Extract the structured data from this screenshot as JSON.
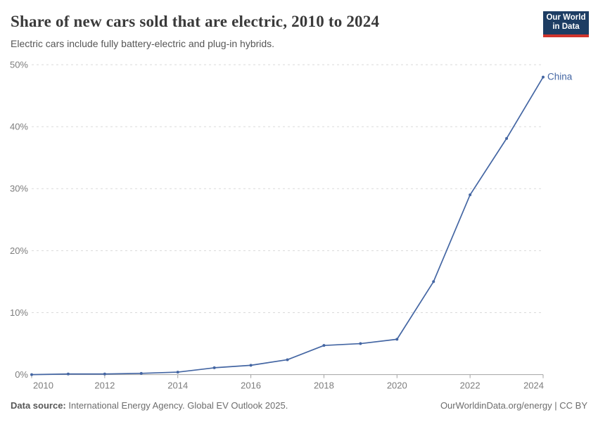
{
  "header": {
    "title": "Share of new cars sold that are electric, 2010 to 2024",
    "subtitle": "Electric cars include fully battery-electric and plug-in hybrids."
  },
  "logo": {
    "line1": "Our World",
    "line2": "in Data",
    "bg_color": "#1d3d63",
    "accent_color": "#d0342c"
  },
  "chart_data": {
    "type": "line",
    "title": "Share of new cars sold that are electric, 2010 to 2024",
    "subtitle": "Electric cars include fully battery-electric and plug-in hybrids.",
    "x": [
      2010,
      2011,
      2012,
      2013,
      2014,
      2015,
      2016,
      2017,
      2018,
      2019,
      2020,
      2021,
      2022,
      2023,
      2024
    ],
    "series": [
      {
        "name": "China",
        "color": "#4466a3",
        "values": [
          0.0,
          0.1,
          0.1,
          0.2,
          0.4,
          1.1,
          1.5,
          2.4,
          4.7,
          5.0,
          5.7,
          15.0,
          29.0,
          38.1,
          48.0
        ]
      }
    ],
    "xlabel": "",
    "ylabel": "",
    "xlim": [
      2010,
      2024
    ],
    "ylim": [
      0,
      50
    ],
    "yticks": [
      0,
      10,
      20,
      30,
      40,
      50
    ],
    "ytick_suffix": "%",
    "xticks": [
      2010,
      2012,
      2014,
      2016,
      2018,
      2020,
      2022,
      2024
    ],
    "grid": "horizontal-dashed",
    "legend": "end-of-line-label",
    "gridline_color": "#dadada",
    "axis_color": "#a3a3a3"
  },
  "footer": {
    "source_label": "Data source:",
    "source_text": " International Energy Agency. Global EV Outlook 2025.",
    "credit": "OurWorldinData.org/energy | CC BY"
  }
}
